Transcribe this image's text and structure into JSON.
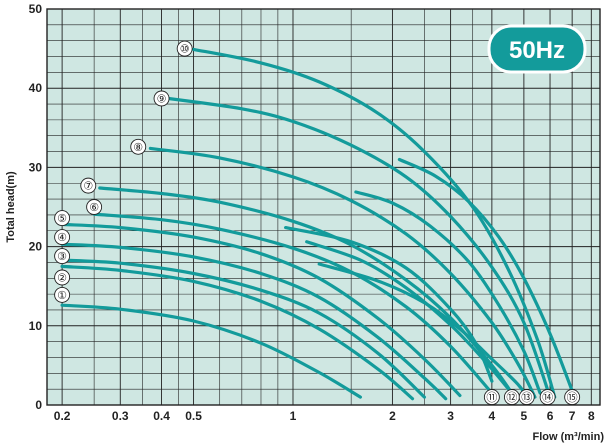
{
  "chart_data": {
    "type": "line",
    "title": "",
    "badge": "50Hz",
    "xlabel": "Flow (m³/min)",
    "ylabel": "Total head(m)",
    "x_scale": "log",
    "xlim": [
      0.18,
      8.5
    ],
    "ylim": [
      0,
      50
    ],
    "x_ticks": [
      0.2,
      0.3,
      0.4,
      0.5,
      1,
      2,
      3,
      4,
      5,
      6,
      7,
      8
    ],
    "x_tick_labels": [
      "0.2",
      "0.3",
      "0.4",
      "0.5",
      "1",
      "2",
      "3",
      "4",
      "5",
      "6",
      "7",
      "8"
    ],
    "x_minor_gridlines": [
      0.25,
      0.35,
      0.45,
      0.6,
      0.7,
      0.8,
      0.9,
      1.5,
      2.5,
      3.5
    ],
    "y_ticks": [
      0,
      10,
      20,
      30,
      40,
      50
    ],
    "y_tick_labels": [
      "0",
      "10",
      "20",
      "30",
      "40",
      "50"
    ],
    "y_gridline_step": 2,
    "grid": true,
    "colors": {
      "curve": "#139b9b",
      "plot_bg": "#cfe7e2",
      "grid": "#222222",
      "badge": "#139b9b",
      "badge_border": "#ffffff",
      "label_bg": "#ffffff"
    },
    "series": [
      {
        "label": "①",
        "label_at": [
          0.2,
          13.9
        ],
        "x": [
          0.2,
          0.3,
          0.5,
          0.8,
          1.2,
          1.6
        ],
        "y": [
          12.6,
          12.1,
          10.6,
          7.8,
          4.1,
          1.0
        ]
      },
      {
        "label": "②",
        "label_at": [
          0.2,
          16.1
        ],
        "x": [
          0.2,
          0.3,
          0.5,
          0.8,
          1.2,
          1.8,
          2.3
        ],
        "y": [
          17.5,
          17.0,
          15.6,
          13.1,
          9.6,
          4.6,
          0.8
        ]
      },
      {
        "label": "③",
        "label_at": [
          0.2,
          18.8
        ],
        "x": [
          0.2,
          0.3,
          0.5,
          0.8,
          1.2,
          1.8,
          2.5
        ],
        "y": [
          18.3,
          17.9,
          16.6,
          14.5,
          11.6,
          6.6,
          1.0
        ]
      },
      {
        "label": "④",
        "label_at": [
          0.2,
          21.2
        ],
        "x": [
          0.2,
          0.3,
          0.5,
          0.8,
          1.2,
          1.8,
          2.5,
          2.9
        ],
        "y": [
          20.3,
          19.9,
          18.7,
          16.6,
          13.6,
          8.6,
          3.4,
          0.8
        ]
      },
      {
        "label": "⑤",
        "label_at": [
          0.2,
          23.6
        ],
        "x": [
          0.2,
          0.3,
          0.5,
          0.8,
          1.2,
          1.8,
          2.5,
          3.2
        ],
        "y": [
          22.8,
          22.4,
          21.2,
          19.1,
          16.0,
          11.0,
          5.8,
          1.2
        ]
      },
      {
        "label": "⑥",
        "label_at": [
          0.25,
          25.0
        ],
        "x": [
          0.25,
          0.4,
          0.6,
          1.0,
          1.5,
          2.2,
          3.0,
          4.0
        ],
        "y": [
          24.1,
          23.4,
          22.2,
          19.8,
          16.8,
          12.4,
          7.4,
          1.5
        ]
      },
      {
        "label": "⑦",
        "label_at": [
          0.24,
          27.7
        ],
        "x": [
          0.26,
          0.4,
          0.6,
          1.0,
          1.5,
          2.2,
          3.0,
          4.0,
          4.6
        ],
        "y": [
          27.4,
          26.7,
          25.6,
          23.2,
          20.2,
          15.8,
          11.0,
          5.0,
          1.5
        ]
      },
      {
        "label": "⑧",
        "label_at": [
          0.34,
          32.6
        ],
        "x": [
          0.37,
          0.6,
          1.0,
          1.5,
          2.2,
          3.0,
          4.0,
          4.8,
          5.4
        ],
        "y": [
          32.4,
          31.2,
          28.8,
          25.8,
          21.6,
          16.6,
          10.4,
          5.2,
          1.0
        ]
      },
      {
        "label": "⑨",
        "label_at": [
          0.4,
          38.7
        ],
        "x": [
          0.42,
          0.7,
          1.0,
          1.5,
          2.2,
          3.0,
          4.0,
          5.0,
          6.0
        ],
        "y": [
          38.7,
          37.4,
          35.8,
          32.8,
          28.8,
          23.8,
          17.4,
          10.4,
          1.0
        ]
      },
      {
        "label": "⑩",
        "label_at": [
          0.47,
          45.0
        ],
        "x": [
          0.5,
          0.8,
          1.2,
          1.8,
          2.5,
          3.5,
          4.5,
          5.5,
          6.2
        ],
        "y": [
          44.9,
          43.2,
          40.8,
          36.9,
          32.0,
          25.0,
          17.0,
          8.2,
          1.0
        ]
      },
      {
        "label": "⑪",
        "label_at": [
          4.0,
          1.0
        ],
        "x": [
          0.95,
          1.5,
          2.2,
          3.0,
          3.6,
          4.0
        ],
        "y": [
          22.4,
          20.6,
          17.3,
          12.1,
          7.6,
          3.0
        ]
      },
      {
        "label": "⑫",
        "label_at": [
          4.6,
          1.0
        ],
        "x": [
          1.1,
          1.6,
          2.2,
          3.0,
          3.8,
          4.6
        ],
        "y": [
          20.6,
          18.3,
          14.8,
          10.1,
          5.6,
          1.5
        ]
      },
      {
        "label": "⑬",
        "label_at": [
          5.1,
          1.0
        ],
        "x": [
          1.2,
          1.8,
          2.5,
          3.2,
          4.0,
          4.8,
          5.1
        ],
        "y": [
          17.8,
          15.7,
          12.9,
          9.6,
          5.8,
          2.6,
          1.0
        ]
      },
      {
        "label": "⑭",
        "label_at": [
          5.9,
          1.0
        ],
        "x": [
          1.55,
          2.0,
          2.6,
          3.4,
          4.2,
          5.0,
          5.6
        ],
        "y": [
          26.9,
          25.5,
          22.6,
          18.1,
          12.6,
          6.8,
          1.5
        ]
      },
      {
        "label": "⑮",
        "label_at": [
          7.0,
          1.0
        ],
        "x": [
          2.1,
          2.7,
          3.4,
          4.2,
          5.0,
          6.0,
          7.0
        ],
        "y": [
          31.0,
          28.9,
          25.7,
          21.2,
          16.0,
          9.0,
          1.8
        ]
      }
    ]
  }
}
